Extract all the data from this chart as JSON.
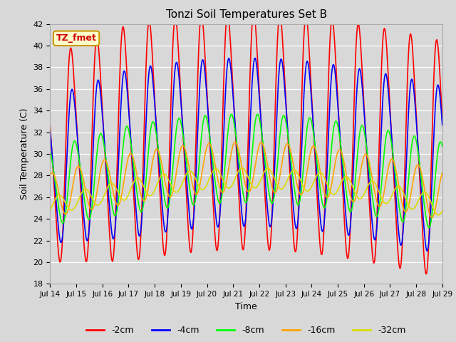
{
  "title": "Tonzi Soil Temperatures Set B",
  "xlabel": "Time",
  "ylabel": "Soil Temperature (C)",
  "ylim": [
    18,
    42
  ],
  "series_order": [
    "-2cm",
    "-4cm",
    "-8cm",
    "-16cm",
    "-32cm"
  ],
  "series": {
    "-2cm": {
      "color": "#FF0000",
      "lw": 1.2,
      "amplitude": 9.0,
      "mean": 29.5,
      "phase_hours": 0.0,
      "skew": 0.6
    },
    "-4cm": {
      "color": "#0000FF",
      "lw": 1.2,
      "amplitude": 6.5,
      "mean": 28.5,
      "phase_hours": 1.0,
      "skew": 0.5
    },
    "-8cm": {
      "color": "#00FF00",
      "lw": 1.2,
      "amplitude": 3.5,
      "mean": 27.0,
      "phase_hours": 3.0,
      "skew": 0.3
    },
    "-16cm": {
      "color": "#FFA500",
      "lw": 1.2,
      "amplitude": 2.0,
      "mean": 26.2,
      "phase_hours": 6.0,
      "skew": 0.1
    },
    "-32cm": {
      "color": "#DDDD00",
      "lw": 1.2,
      "amplitude": 0.8,
      "mean": 25.2,
      "phase_hours": 12.0,
      "skew": 0.0
    }
  },
  "xtick_labels": [
    "Jul 14",
    "Jul 15",
    "Jul 16",
    "Jul 17",
    "Jul 18",
    "Jul 19",
    "Jul 20",
    "Jul 21",
    "Jul 22",
    "Jul 23",
    "Jul 24",
    "Jul 25",
    "Jul 26",
    "Jul 27",
    "Jul 28",
    "Jul 29"
  ],
  "annotation_text": "TZ_fmet",
  "annotation_color": "#CC0000",
  "annotation_bg": "#FFFFCC",
  "annotation_border": "#CC9900",
  "bg_color": "#D8D8D8",
  "plot_bg": "#D8D8D8"
}
